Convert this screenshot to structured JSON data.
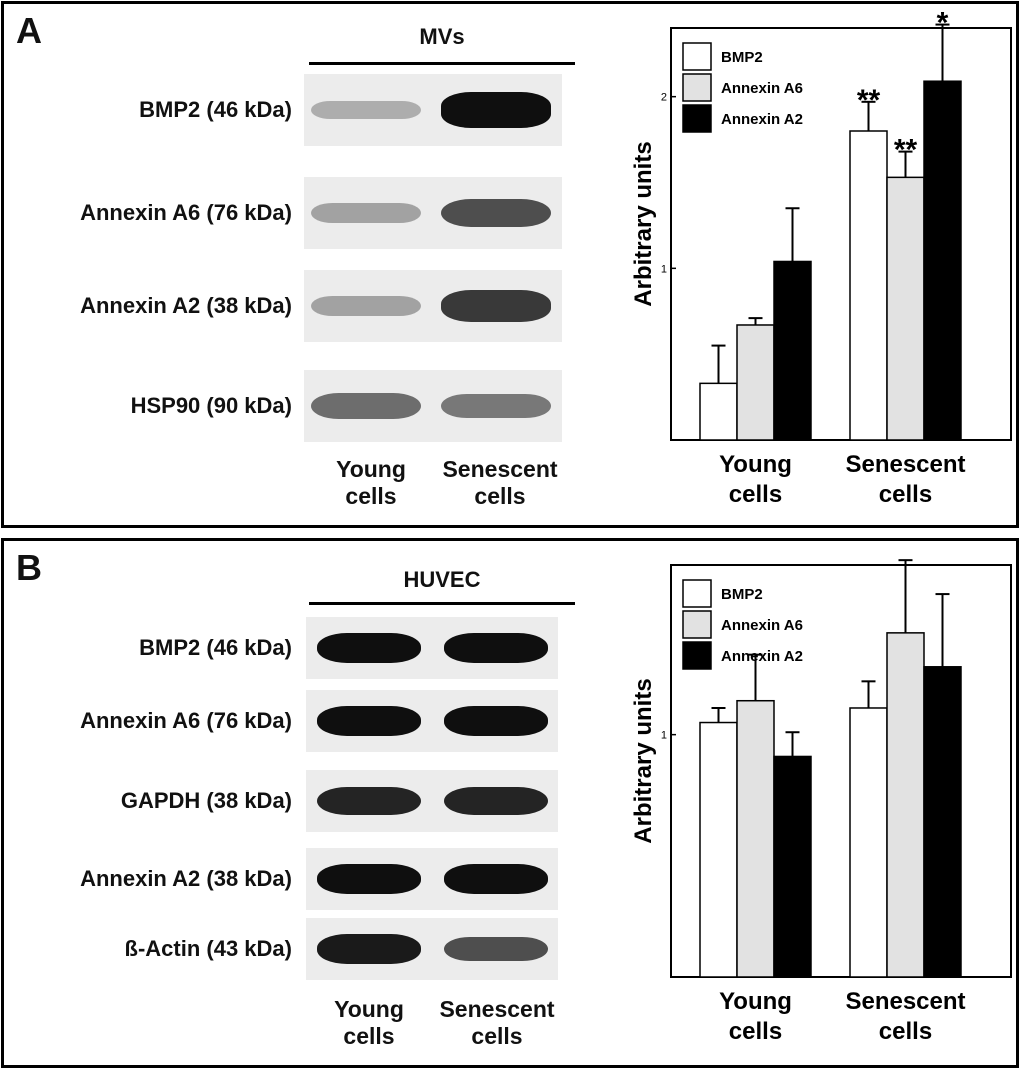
{
  "panel_a": {
    "letter": "A",
    "blot": {
      "title": "MVs",
      "bands": [
        {
          "label": "BMP2 (46 kDa)",
          "young": 0.25,
          "senescent": 1.0
        },
        {
          "label": "Annexin A6 (76 kDa)",
          "young": 0.3,
          "senescent": 0.7
        },
        {
          "label": "Annexin A2 (38 kDa)",
          "young": 0.3,
          "senescent": 0.8
        },
        {
          "label": "HSP90 (90 kDa)",
          "young": 0.55,
          "senescent": 0.5
        }
      ],
      "lanes": [
        "Young\ncells",
        "Senescent\ncells"
      ]
    }
  },
  "panel_b": {
    "letter": "B",
    "blot": {
      "title": "HUVEC",
      "bands": [
        {
          "label": "BMP2 (46 kDa)",
          "young": 1.0,
          "senescent": 1.0
        },
        {
          "label": "Annexin A6 (76 kDa)",
          "young": 1.0,
          "senescent": 1.0
        },
        {
          "label": "GAPDH (38 kDa)",
          "young": 0.9,
          "senescent": 0.9
        },
        {
          "label": "Annexin A2 (38 kDa)",
          "young": 1.0,
          "senescent": 1.0
        },
        {
          "label": "ß-Actin (43 kDa)",
          "young": 0.95,
          "senescent": 0.7
        }
      ],
      "lanes": [
        "Young\ncells",
        "Senescent\ncells"
      ]
    }
  },
  "chart_data": [
    {
      "type": "bar",
      "title": "",
      "xlabel": "",
      "ylabel": "Arbitrary units",
      "categories": [
        "Young\ncells",
        "Senescent\ncells"
      ],
      "ylim": [
        0,
        2.4
      ],
      "yticks": [
        "1",
        "2"
      ],
      "series": [
        {
          "name": "BMP2",
          "color": "#ffffff",
          "values": [
            0.33,
            1.8
          ],
          "errors": [
            0.22,
            0.17
          ]
        },
        {
          "name": "Annexin A6",
          "color": "#e2e2e2",
          "values": [
            0.67,
            1.53
          ],
          "errors": [
            0.04,
            0.15
          ]
        },
        {
          "name": "Annexin A2",
          "color": "#000000",
          "values": [
            1.04,
            2.09
          ],
          "errors": [
            0.31,
            0.33
          ]
        }
      ],
      "annotations": [
        {
          "series": "BMP2",
          "category": "Senescent\ncells",
          "text": "**"
        },
        {
          "series": "Annexin A6",
          "category": "Senescent\ncells",
          "text": "**"
        },
        {
          "series": "Annexin A2",
          "category": "Senescent\ncells",
          "text": "*"
        }
      ],
      "legend": "top-left",
      "grid": false
    },
    {
      "type": "bar",
      "title": "",
      "xlabel": "",
      "ylabel": "Arbitrary units",
      "categories": [
        "Young\ncells",
        "Senescent\ncells"
      ],
      "ylim": [
        0,
        1.7
      ],
      "yticks": [
        "1"
      ],
      "series": [
        {
          "name": "BMP2",
          "color": "#ffffff",
          "values": [
            1.05,
            1.11
          ],
          "errors": [
            0.06,
            0.11
          ]
        },
        {
          "name": "Annexin A6",
          "color": "#e2e2e2",
          "values": [
            1.14,
            1.42
          ],
          "errors": [
            0.19,
            0.3
          ]
        },
        {
          "name": "Annexin A2",
          "color": "#000000",
          "values": [
            0.91,
            1.28
          ],
          "errors": [
            0.1,
            0.3
          ]
        }
      ],
      "annotations": [],
      "legend": "top-left",
      "grid": false
    }
  ]
}
